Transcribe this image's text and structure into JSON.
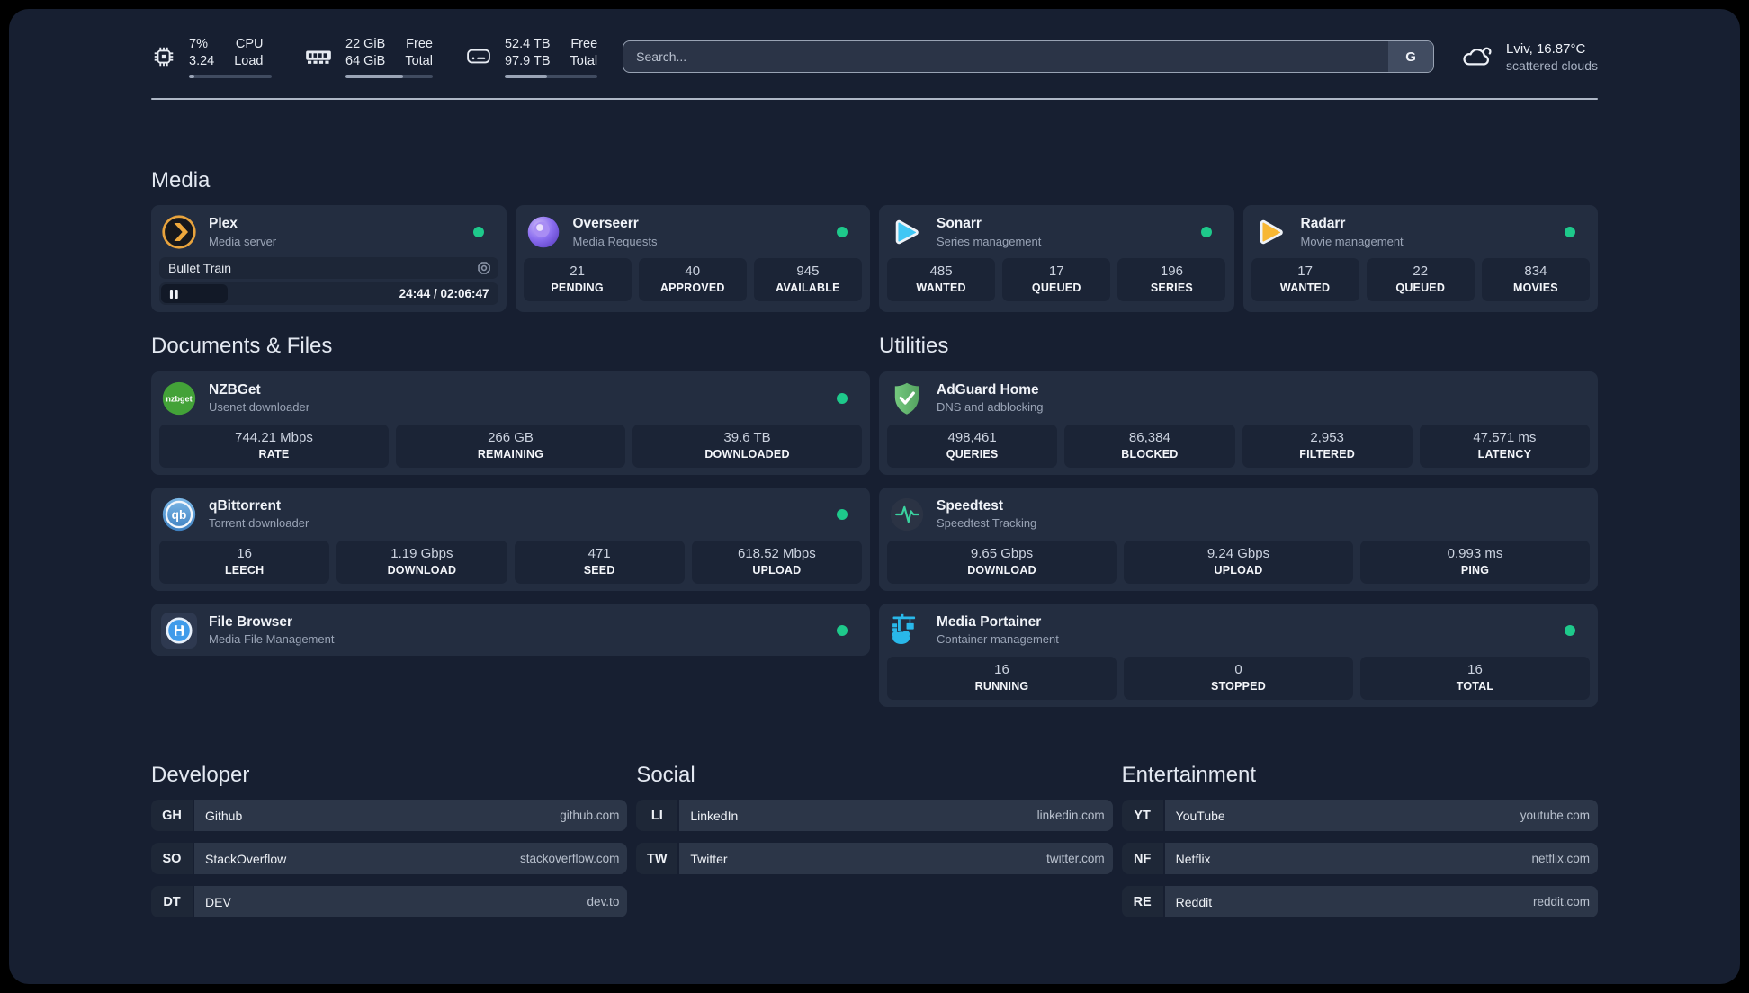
{
  "header": {
    "stats": {
      "cpu": {
        "top_left": "7%",
        "bottom_left": "3.24",
        "top_right": "CPU",
        "bottom_right": "Load",
        "progress_pct": 7
      },
      "memory": {
        "top_left": "22 GiB",
        "bottom_left": "64 GiB",
        "top_right": "Free",
        "bottom_right": "Total",
        "progress_pct": 66
      },
      "disk": {
        "top_left": "52.4 TB",
        "bottom_left": "97.9 TB",
        "top_right": "Free",
        "bottom_right": "Total",
        "progress_pct": 46
      }
    },
    "search": {
      "placeholder": "Search...",
      "engine_button": "G"
    },
    "weather": {
      "location": "Lviv, 16.87°C",
      "condition": "scattered clouds"
    }
  },
  "media_section": {
    "title": "Media",
    "plex": {
      "name": "Plex",
      "desc": "Media server",
      "status": "online",
      "now_playing": {
        "title": "Bullet Train",
        "time": "24:44 / 02:06:47"
      }
    },
    "overseerr": {
      "name": "Overseerr",
      "desc": "Media Requests",
      "status": "online",
      "stats": [
        {
          "value": "21",
          "label": "PENDING"
        },
        {
          "value": "40",
          "label": "APPROVED"
        },
        {
          "value": "945",
          "label": "AVAILABLE"
        }
      ]
    },
    "sonarr": {
      "name": "Sonarr",
      "desc": "Series management",
      "status": "online",
      "stats": [
        {
          "value": "485",
          "label": "WANTED"
        },
        {
          "value": "17",
          "label": "QUEUED"
        },
        {
          "value": "196",
          "label": "SERIES"
        }
      ]
    },
    "radarr": {
      "name": "Radarr",
      "desc": "Movie management",
      "status": "online",
      "stats": [
        {
          "value": "17",
          "label": "WANTED"
        },
        {
          "value": "22",
          "label": "QUEUED"
        },
        {
          "value": "834",
          "label": "MOVIES"
        }
      ]
    }
  },
  "documents_section": {
    "title": "Documents & Files",
    "nzbget": {
      "name": "NZBGet",
      "desc": "Usenet downloader",
      "status": "online",
      "stats": [
        {
          "value": "744.21 Mbps",
          "label": "RATE"
        },
        {
          "value": "266 GB",
          "label": "REMAINING"
        },
        {
          "value": "39.6 TB",
          "label": "DOWNLOADED"
        }
      ]
    },
    "qbittorrent": {
      "name": "qBittorrent",
      "desc": "Torrent downloader",
      "status": "online",
      "stats": [
        {
          "value": "16",
          "label": "LEECH"
        },
        {
          "value": "1.19 Gbps",
          "label": "DOWNLOAD"
        },
        {
          "value": "471",
          "label": "SEED"
        },
        {
          "value": "618.52 Mbps",
          "label": "UPLOAD"
        }
      ]
    },
    "filebrowser": {
      "name": "File Browser",
      "desc": "Media File Management",
      "status": "online"
    }
  },
  "utilities_section": {
    "title": "Utilities",
    "adguard": {
      "name": "AdGuard Home",
      "desc": "DNS and adblocking",
      "stats": [
        {
          "value": "498,461",
          "label": "QUERIES"
        },
        {
          "value": "86,384",
          "label": "BLOCKED"
        },
        {
          "value": "2,953",
          "label": "FILTERED"
        },
        {
          "value": "47.571 ms",
          "label": "LATENCY"
        }
      ]
    },
    "speedtest": {
      "name": "Speedtest",
      "desc": "Speedtest Tracking",
      "stats": [
        {
          "value": "9.65 Gbps",
          "label": "DOWNLOAD"
        },
        {
          "value": "9.24 Gbps",
          "label": "UPLOAD"
        },
        {
          "value": "0.993 ms",
          "label": "PING"
        }
      ]
    },
    "portainer": {
      "name": "Media Portainer",
      "desc": "Container management",
      "status": "online",
      "stats": [
        {
          "value": "16",
          "label": "RUNNING"
        },
        {
          "value": "0",
          "label": "STOPPED"
        },
        {
          "value": "16",
          "label": "TOTAL"
        }
      ]
    }
  },
  "bookmarks": {
    "developer": {
      "title": "Developer",
      "items": [
        {
          "abbr": "GH",
          "name": "Github",
          "url": "github.com"
        },
        {
          "abbr": "SO",
          "name": "StackOverflow",
          "url": "stackoverflow.com"
        },
        {
          "abbr": "DT",
          "name": "DEV",
          "url": "dev.to"
        }
      ]
    },
    "social": {
      "title": "Social",
      "items": [
        {
          "abbr": "LI",
          "name": "LinkedIn",
          "url": "linkedin.com"
        },
        {
          "abbr": "TW",
          "name": "Twitter",
          "url": "twitter.com"
        }
      ]
    },
    "entertainment": {
      "title": "Entertainment",
      "items": [
        {
          "abbr": "YT",
          "name": "YouTube",
          "url": "youtube.com"
        },
        {
          "abbr": "NF",
          "name": "Netflix",
          "url": "netflix.com"
        },
        {
          "abbr": "RE",
          "name": "Reddit",
          "url": "reddit.com"
        }
      ]
    }
  },
  "colors": {
    "status_online": "#1ec98b",
    "plex": "#e5a00d",
    "overseerr": "#8b6ef0",
    "sonarr": "#41c7f4",
    "radarr": "#f7b733",
    "nzbget": "#43a238",
    "qbittorrent": "#468cc8",
    "adguard": "#67b279",
    "speedtest": "#3ad29f",
    "filebrowser": "#3f9bea",
    "portainer": "#29b8ea"
  }
}
